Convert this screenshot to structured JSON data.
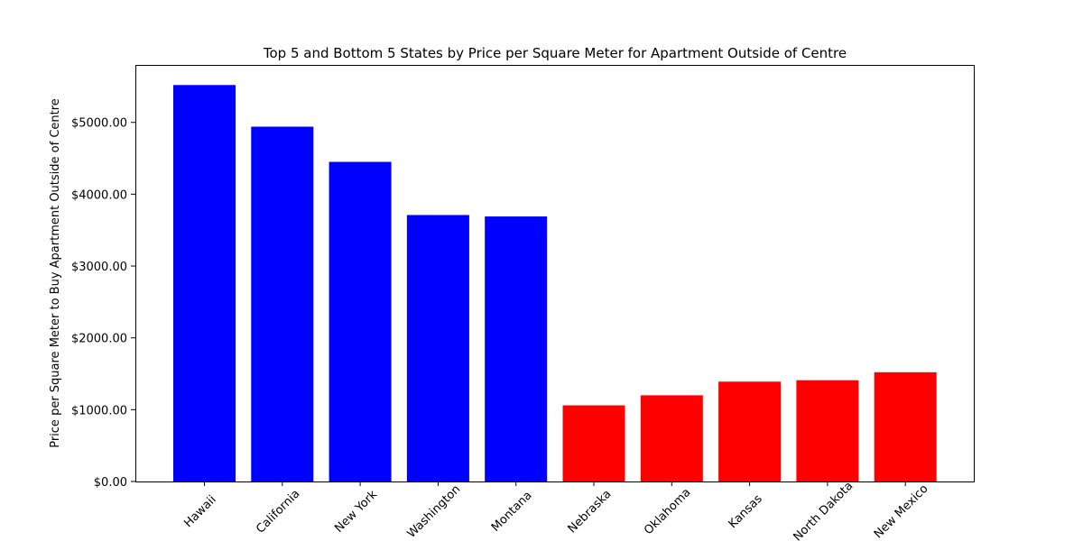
{
  "chart_data": {
    "type": "bar",
    "title": "Top 5 and Bottom 5 States by Price per Square Meter for Apartment Outside of Centre",
    "xlabel": "",
    "ylabel": "Price per Square Meter to Buy Apartment Outside of Centre",
    "categories": [
      "Hawaii",
      "California",
      "New York",
      "Washington",
      "Montana",
      "Nebraska",
      "Oklahoma",
      "Kansas",
      "North Dakota",
      "New Mexico"
    ],
    "values": [
      5520,
      4940,
      4450,
      3710,
      3690,
      1060,
      1200,
      1390,
      1410,
      1520
    ],
    "colors": [
      "#0000ff",
      "#0000ff",
      "#0000ff",
      "#0000ff",
      "#0000ff",
      "#ff0000",
      "#ff0000",
      "#ff0000",
      "#ff0000",
      "#ff0000"
    ],
    "ylim": [
      0,
      5800
    ],
    "yticks": [
      0,
      1000,
      2000,
      3000,
      4000,
      5000
    ],
    "ytick_labels": [
      "$0.00",
      "$1000.00",
      "$2000.00",
      "$3000.00",
      "$4000.00",
      "$5000.00"
    ],
    "grid": false,
    "legend": "none"
  }
}
